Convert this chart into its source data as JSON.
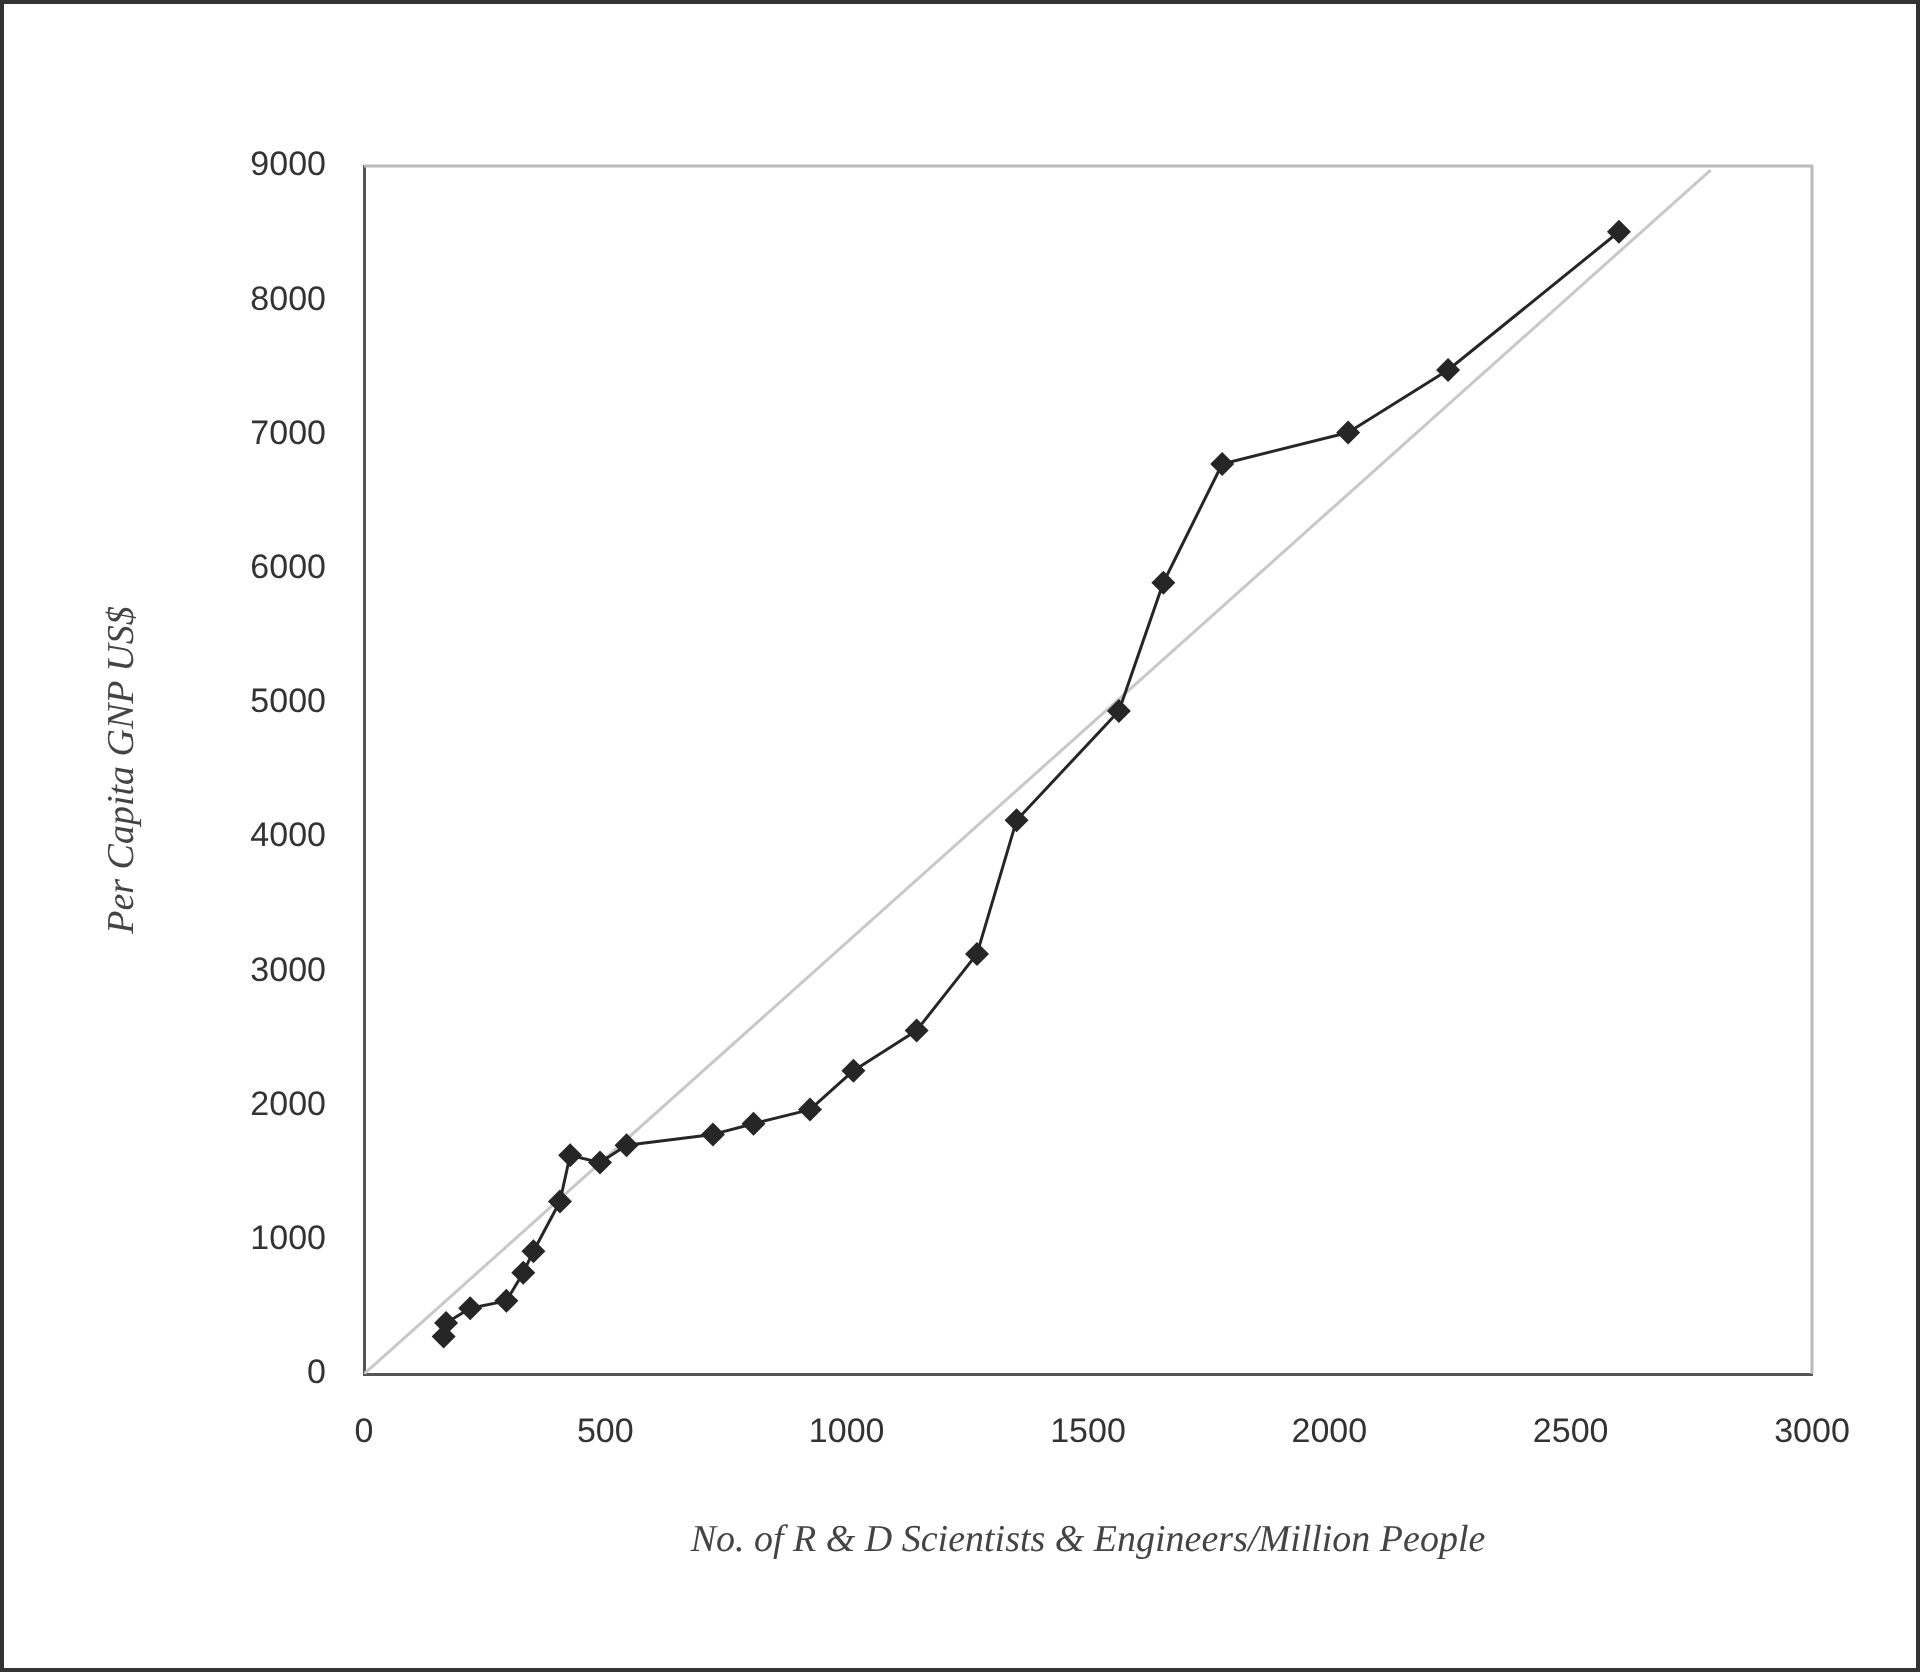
{
  "chart_data": {
    "type": "line",
    "xlabel": "No. of R & D Scientists & Engineers/Million People",
    "ylabel": "Per Capita GNP US$",
    "x": [
      165,
      170,
      220,
      295,
      330,
      351,
      406,
      427,
      489,
      544,
      723,
      807,
      924,
      1014,
      1145,
      1270,
      1352,
      1564,
      1656,
      1778,
      2039,
      2246,
      2600
    ],
    "xlim": [
      0,
      3000
    ],
    "xticks": [
      0,
      500,
      1000,
      1500,
      2000,
      2500,
      3000
    ],
    "ylim": [
      0,
      9000
    ],
    "yticks": [
      0,
      1000,
      2000,
      3000,
      4000,
      5000,
      6000,
      7000,
      8000,
      9000
    ],
    "marker": "diamond",
    "line_style": "solid",
    "series": [
      {
        "color": "#262626",
        "values": [
          280,
          380,
          490,
          545,
          755,
          915,
          1285,
          1630,
          1575,
          1705,
          1785,
          1865,
          1970,
          2260,
          2560,
          3130,
          4125,
          4940,
          5895,
          6780,
          7015,
          7480,
          8510
        ]
      },
      {
        "type": "line",
        "color": "#c8c8c8",
        "x": [
          0,
          2790
        ],
        "values": [
          0,
          8970
        ],
        "marker": "none"
      }
    ]
  }
}
